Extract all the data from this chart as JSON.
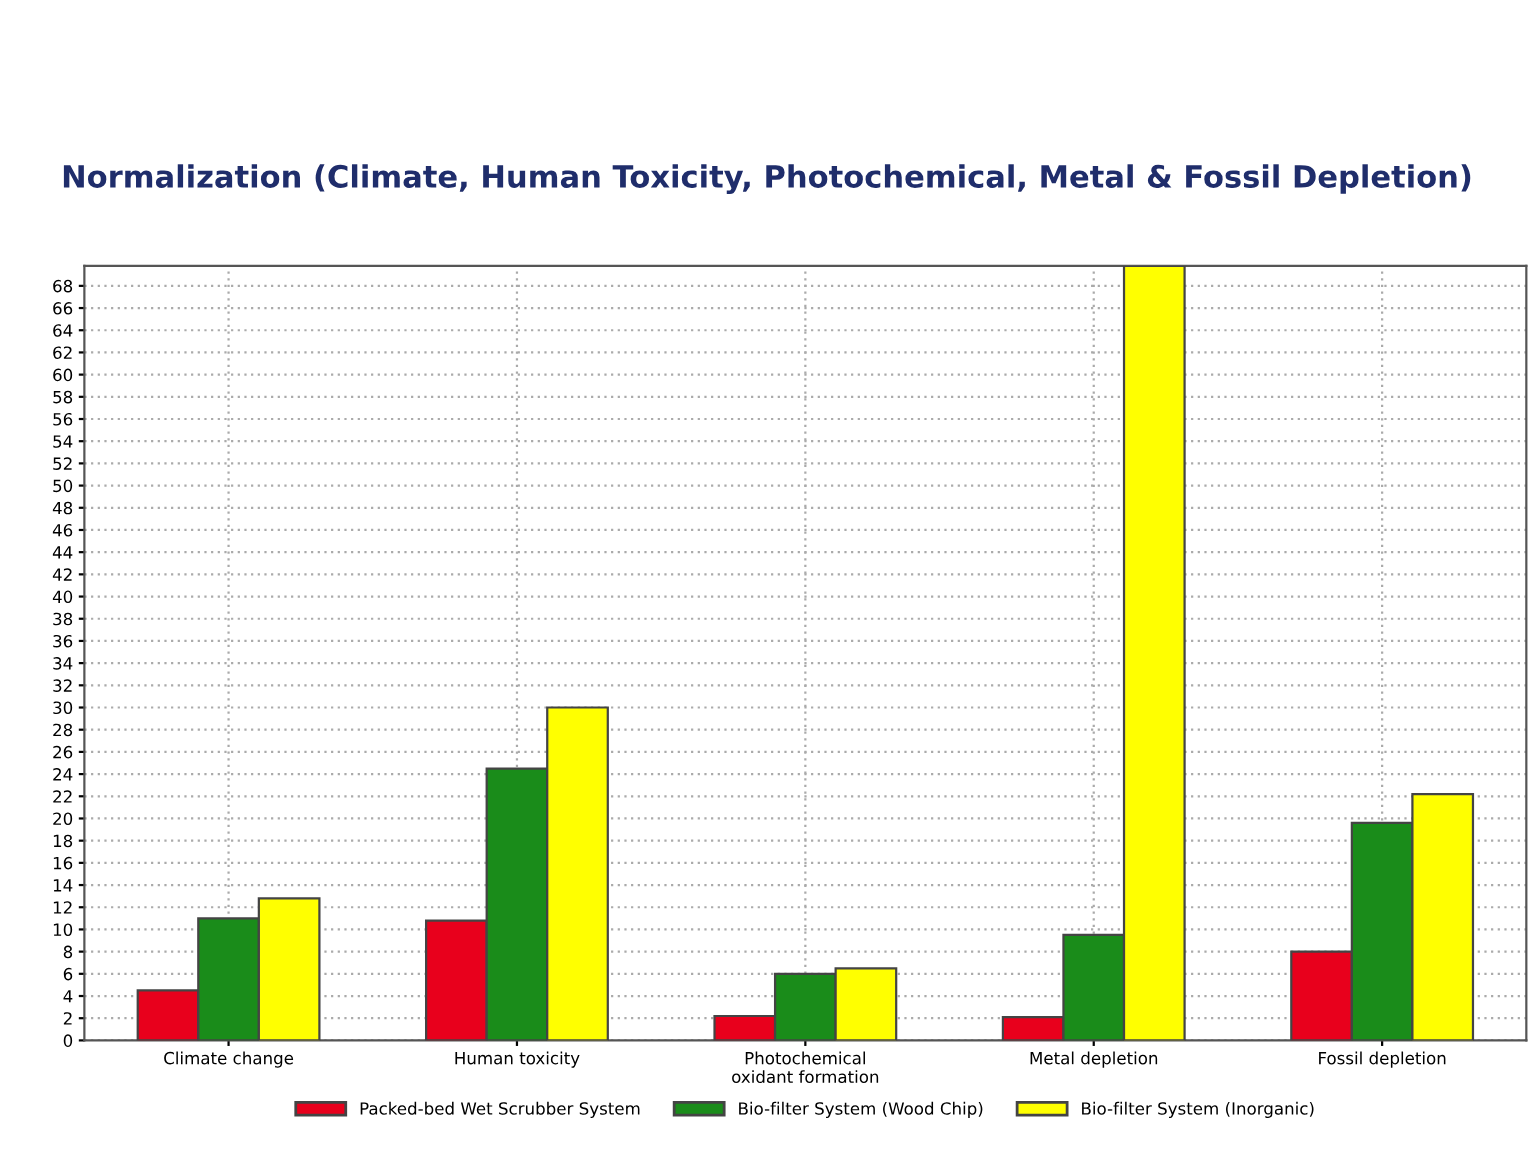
{
  "chart_data": {
    "type": "bar",
    "title": "Normalization (Climate, Human Toxicity, Photochemical, Metal & Fossil Depletion)",
    "categories": [
      "Climate change",
      "Human toxicity",
      "Photochemical\noxidant formation",
      "Metal depletion",
      "Fossil depletion"
    ],
    "series": [
      {
        "name": "Packed-bed Wet Scrubber System",
        "color": "#e8001c",
        "values": [
          4.5,
          10.8,
          2.2,
          2.1,
          8.0
        ]
      },
      {
        "name": "Bio-filter System (Wood Chip)",
        "color": "#1a8c1a",
        "values": [
          11.0,
          24.5,
          6.0,
          9.5,
          19.6
        ]
      },
      {
        "name": "Bio-filter System (Inorganic)",
        "color": "#ffff00",
        "values": [
          12.8,
          30.0,
          6.5,
          69.8,
          22.2
        ]
      }
    ],
    "ylim": [
      0,
      69.8
    ],
    "yticks": [
      0,
      2,
      4,
      6,
      8,
      10,
      12,
      14,
      16,
      18,
      20,
      22,
      24,
      26,
      28,
      30,
      32,
      34,
      36,
      38,
      40,
      42,
      44,
      46,
      48,
      50,
      52,
      54,
      56,
      58,
      60,
      62,
      64,
      66,
      68
    ],
    "grid": true,
    "legend": "bottom"
  }
}
